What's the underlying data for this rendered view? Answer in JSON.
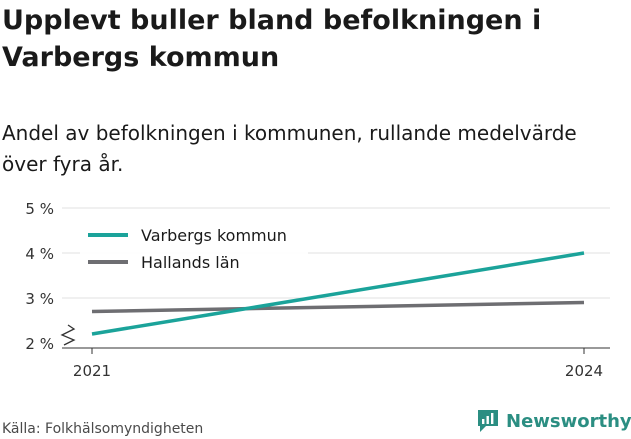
{
  "title": "Upplevt buller bland befolkningen i Varbergs kommun",
  "subtitle": "Andel av befolkningen i kommunen, rullande medelvärde över fyra år.",
  "source": "Källa: Folkhälsomyndigheten",
  "brand": {
    "name": "Newsworthy",
    "icon": "newsworthy-logo-icon",
    "color": "#2b8e82"
  },
  "chart_data": {
    "type": "line",
    "x": [
      "2021",
      "2024"
    ],
    "yticks": [
      "2 %",
      "3 %",
      "4 %",
      "5 %"
    ],
    "ylim": [
      2,
      5
    ],
    "grid": true,
    "axis_break": true,
    "legend_position": "top-left",
    "series": [
      {
        "name": "Varbergs kommun",
        "values": [
          2.2,
          4.0
        ],
        "color": "#1ba39a"
      },
      {
        "name": "Hallands län",
        "values": [
          2.7,
          2.9
        ],
        "color": "#6e6e72"
      }
    ]
  }
}
